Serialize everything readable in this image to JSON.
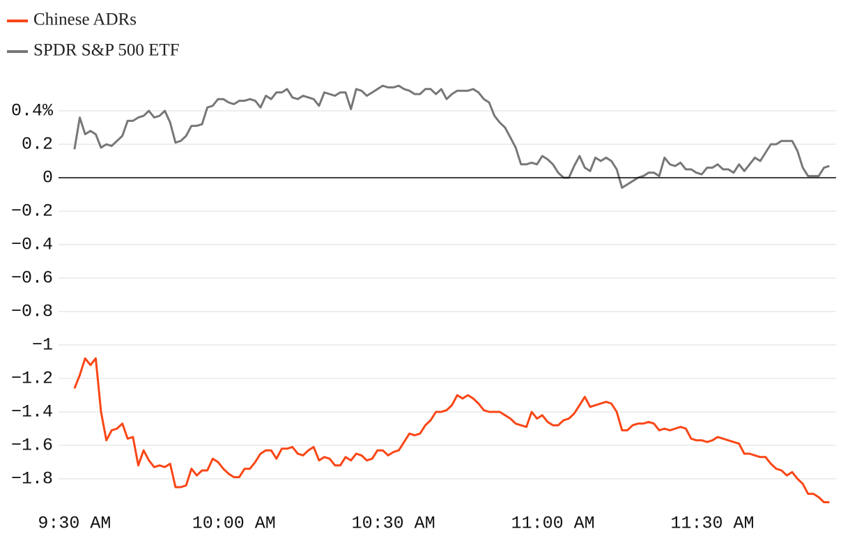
{
  "chart_data": {
    "type": "line",
    "x": [
      570,
      571,
      572,
      573,
      574,
      575,
      576,
      577,
      578,
      579,
      580,
      581,
      582,
      583,
      584,
      585,
      586,
      587,
      588,
      589,
      590,
      591,
      592,
      593,
      594,
      595,
      596,
      597,
      598,
      599,
      600,
      601,
      602,
      603,
      604,
      605,
      606,
      607,
      608,
      609,
      610,
      611,
      612,
      613,
      614,
      615,
      616,
      617,
      618,
      619,
      620,
      621,
      622,
      623,
      624,
      625,
      626,
      627,
      628,
      629,
      630,
      631,
      632,
      633,
      634,
      635,
      636,
      637,
      638,
      639,
      640,
      641,
      642,
      643,
      644,
      645,
      646,
      647,
      648,
      649,
      650,
      651,
      652,
      653,
      654,
      655,
      656,
      657,
      658,
      659,
      660,
      661,
      662,
      663,
      664,
      665,
      666,
      667,
      668,
      669,
      670,
      671,
      672,
      673,
      674,
      675,
      676,
      677,
      678,
      679,
      680,
      681,
      682,
      683,
      684,
      685,
      686,
      687,
      688,
      689,
      690,
      691,
      692,
      693,
      694,
      695,
      696,
      697,
      698,
      699,
      700,
      701,
      702,
      703,
      704,
      705,
      706,
      707,
      708,
      709,
      710,
      711,
      712
    ],
    "series": [
      {
        "name": "Chinese ADRs",
        "color": "#fa4616",
        "values": [
          -1.26,
          -1.18,
          -1.08,
          -1.12,
          -1.08,
          -1.4,
          -1.57,
          -1.51,
          -1.5,
          -1.47,
          -1.56,
          -1.55,
          -1.72,
          -1.63,
          -1.69,
          -1.73,
          -1.72,
          -1.73,
          -1.71,
          -1.85,
          -1.85,
          -1.84,
          -1.74,
          -1.78,
          -1.75,
          -1.75,
          -1.68,
          -1.7,
          -1.74,
          -1.77,
          -1.79,
          -1.79,
          -1.74,
          -1.74,
          -1.7,
          -1.65,
          -1.63,
          -1.63,
          -1.68,
          -1.62,
          -1.62,
          -1.61,
          -1.65,
          -1.66,
          -1.63,
          -1.61,
          -1.69,
          -1.67,
          -1.68,
          -1.72,
          -1.72,
          -1.67,
          -1.69,
          -1.65,
          -1.66,
          -1.69,
          -1.68,
          -1.63,
          -1.63,
          -1.66,
          -1.64,
          -1.63,
          -1.58,
          -1.53,
          -1.54,
          -1.53,
          -1.48,
          -1.45,
          -1.4,
          -1.4,
          -1.39,
          -1.36,
          -1.3,
          -1.32,
          -1.3,
          -1.32,
          -1.35,
          -1.39,
          -1.4,
          -1.4,
          -1.4,
          -1.42,
          -1.44,
          -1.47,
          -1.48,
          -1.49,
          -1.4,
          -1.44,
          -1.42,
          -1.46,
          -1.48,
          -1.48,
          -1.45,
          -1.44,
          -1.41,
          -1.36,
          -1.31,
          -1.37,
          -1.36,
          -1.35,
          -1.34,
          -1.35,
          -1.4,
          -1.51,
          -1.51,
          -1.48,
          -1.47,
          -1.47,
          -1.46,
          -1.47,
          -1.51,
          -1.5,
          -1.51,
          -1.5,
          -1.49,
          -1.5,
          -1.56,
          -1.57,
          -1.57,
          -1.58,
          -1.57,
          -1.55,
          -1.56,
          -1.57,
          -1.58,
          -1.59,
          -1.65,
          -1.65,
          -1.66,
          -1.67,
          -1.67,
          -1.71,
          -1.74,
          -1.75,
          -1.78,
          -1.76,
          -1.8,
          -1.83,
          -1.89,
          -1.89,
          -1.91,
          -1.94,
          -1.94
        ]
      },
      {
        "name": "SPDR S&P 500 ETF",
        "color": "#777777",
        "values": [
          0.17,
          0.36,
          0.26,
          0.28,
          0.26,
          0.18,
          0.2,
          0.19,
          0.22,
          0.25,
          0.34,
          0.34,
          0.36,
          0.37,
          0.4,
          0.36,
          0.37,
          0.4,
          0.33,
          0.21,
          0.22,
          0.25,
          0.31,
          0.31,
          0.32,
          0.42,
          0.43,
          0.47,
          0.47,
          0.45,
          0.44,
          0.46,
          0.46,
          0.47,
          0.46,
          0.42,
          0.49,
          0.47,
          0.51,
          0.51,
          0.53,
          0.48,
          0.47,
          0.49,
          0.48,
          0.47,
          0.43,
          0.51,
          0.5,
          0.49,
          0.51,
          0.51,
          0.41,
          0.53,
          0.52,
          0.49,
          0.51,
          0.53,
          0.55,
          0.54,
          0.54,
          0.55,
          0.53,
          0.52,
          0.5,
          0.5,
          0.53,
          0.53,
          0.5,
          0.53,
          0.47,
          0.5,
          0.52,
          0.52,
          0.52,
          0.53,
          0.51,
          0.47,
          0.45,
          0.37,
          0.33,
          0.3,
          0.24,
          0.18,
          0.08,
          0.08,
          0.09,
          0.08,
          0.13,
          0.11,
          0.08,
          0.03,
          0,
          0,
          0.07,
          0.13,
          0.06,
          0.04,
          0.12,
          0.1,
          0.12,
          0.1,
          0.05,
          -0.06,
          -0.04,
          -0.02,
          0,
          0.01,
          0.03,
          0.03,
          0.01,
          0.12,
          0.08,
          0.07,
          0.09,
          0.05,
          0.05,
          0.03,
          0.02,
          0.06,
          0.06,
          0.08,
          0.05,
          0.05,
          0.03,
          0.08,
          0.04,
          0.08,
          0.12,
          0.1,
          0.15,
          0.2,
          0.2,
          0.22,
          0.22,
          0.22,
          0.16,
          0.06,
          0.01,
          0.01,
          0.01,
          0.06,
          0.07
        ]
      }
    ],
    "xlim": [
      567,
      713
    ],
    "xticks": [
      {
        "value": 570,
        "label": "9:30 AM"
      },
      {
        "value": 600,
        "label": "10:00 AM"
      },
      {
        "value": 630,
        "label": "10:30 AM"
      },
      {
        "value": 660,
        "label": "11:00 AM"
      },
      {
        "value": 690,
        "label": "11:30 AM"
      }
    ],
    "ylim": [
      -1.95,
      0.56
    ],
    "yticks": [
      {
        "value": 0.4,
        "label": "0.4%"
      },
      0.2,
      0,
      {
        "value": -0.2,
        "label": "−0.2"
      },
      {
        "value": -0.4,
        "label": "−0.4"
      },
      {
        "value": -0.6,
        "label": "−0.6"
      },
      {
        "value": -0.8,
        "label": "−0.8"
      },
      {
        "value": -1,
        "label": "−1"
      },
      {
        "value": -1.2,
        "label": "−1.2"
      },
      {
        "value": -1.4,
        "label": "−1.4"
      },
      {
        "value": -1.6,
        "label": "−1.6"
      },
      {
        "value": -1.8,
        "label": "−1.8"
      }
    ],
    "grid": true
  }
}
